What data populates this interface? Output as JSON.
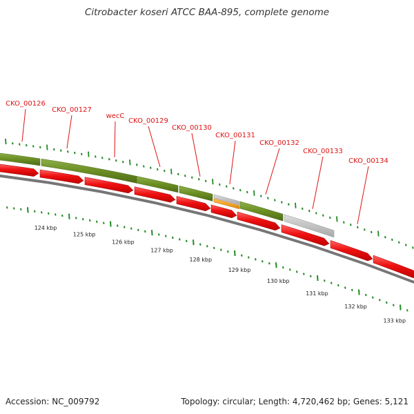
{
  "title": "Citrobacter koseri ATCC BAA-895, complete genome",
  "accession_text": "Accession: NC_009792",
  "summary_text": "Topology: circular; Length: 4,720,462 bp; Genes: 5,121",
  "colors": {
    "cds_red": "#ee1111",
    "gene_green": "#6b8e23",
    "grey_feature": "#bbbbbb",
    "orange_feature": "#f0a020",
    "tick_green": "#228822",
    "label_red": "#dd1111",
    "backbone": "#777777"
  },
  "gene_labels": [
    {
      "name": "CKO_00126"
    },
    {
      "name": "CKO_00127"
    },
    {
      "name": "wecC"
    },
    {
      "name": "CKO_00129"
    },
    {
      "name": "CKO_00130"
    },
    {
      "name": "CKO_00131"
    },
    {
      "name": "CKO_00132"
    },
    {
      "name": "CKO_00133"
    },
    {
      "name": "CKO_00134"
    }
  ],
  "scale_labels": [
    "124 kbp",
    "125 kbp",
    "126 kbp",
    "127 kbp",
    "128 kbp",
    "129 kbp",
    "130 kbp",
    "131 kbp",
    "132 kbp",
    "133 kbp"
  ]
}
